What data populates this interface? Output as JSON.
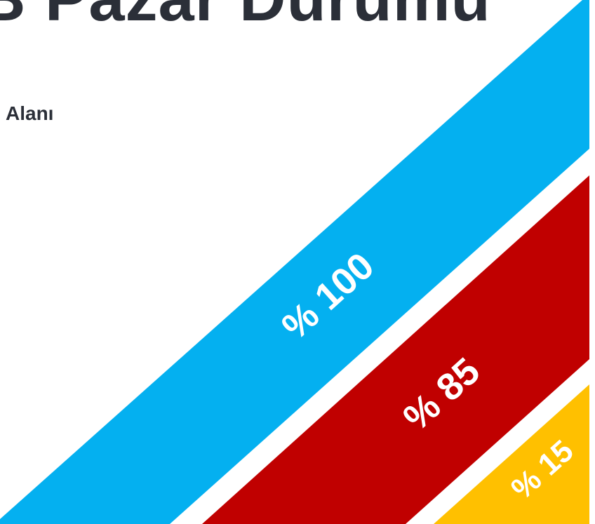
{
  "header": {
    "title": "B Pazar Durumu",
    "subtitle": "Alanı"
  },
  "stripes": [
    {
      "label": "% 100",
      "value": 100,
      "color": "#04b0f0"
    },
    {
      "label": "% 85",
      "value": 85,
      "color": "#c00000"
    },
    {
      "label": "% 15",
      "value": 15,
      "color": "#ffc000"
    }
  ]
}
